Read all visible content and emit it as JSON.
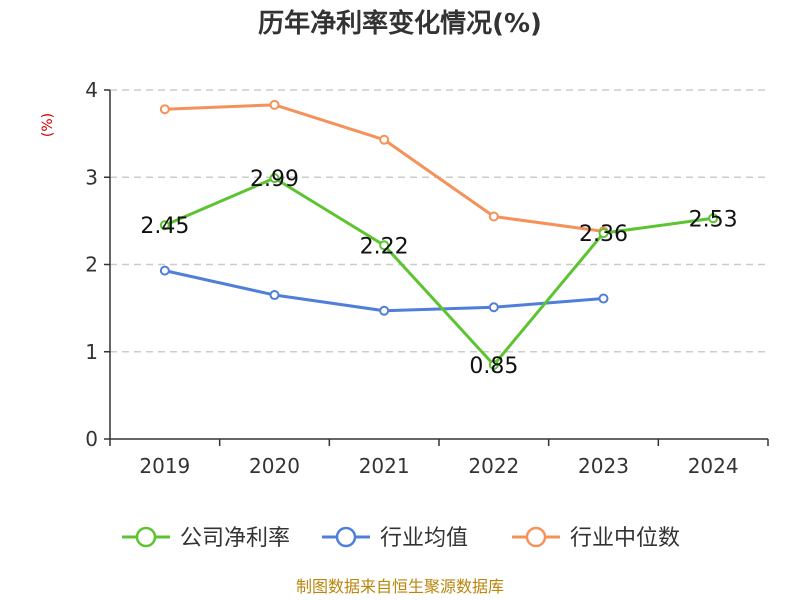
{
  "chart_data": {
    "type": "line",
    "title": "历年净利率变化情况(%)",
    "unit_label": "(%)",
    "categories": [
      "2019",
      "2020",
      "2021",
      "2022",
      "2023",
      "2024"
    ],
    "ylim": [
      0,
      4
    ],
    "yticks": [
      "0",
      "1",
      "2",
      "3",
      "4"
    ],
    "grid": "horizontal-dashed",
    "legend_position": "bottom",
    "series": [
      {
        "name": "公司净利率",
        "color": "#5cc430",
        "values": [
          2.45,
          2.99,
          2.22,
          0.85,
          2.36,
          2.53
        ],
        "labels": [
          "2.45",
          "2.99",
          "2.22",
          "0.85",
          "2.36",
          "2.53"
        ],
        "show_labels": true
      },
      {
        "name": "行业均值",
        "color": "#4f7fd8",
        "values": [
          1.93,
          1.65,
          1.47,
          1.51,
          1.61,
          null
        ],
        "show_labels": false
      },
      {
        "name": "行业中位数",
        "color": "#f4925a",
        "values": [
          3.78,
          3.83,
          3.43,
          2.55,
          2.38,
          null
        ],
        "show_labels": false
      }
    ],
    "source": "制图数据来自恒生聚源数据库"
  }
}
